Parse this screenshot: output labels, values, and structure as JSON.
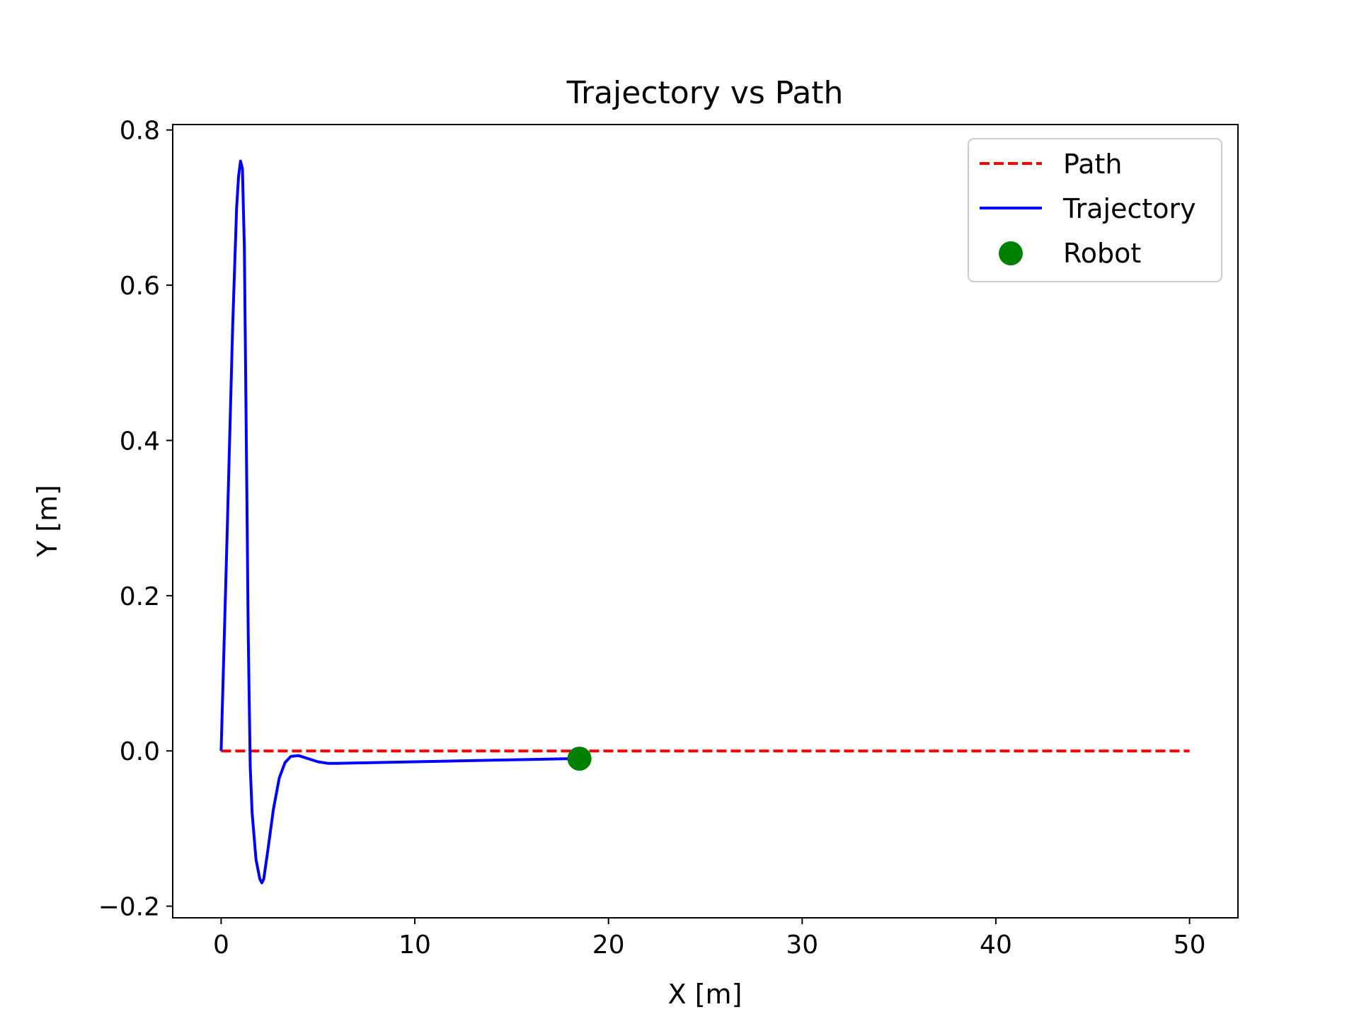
{
  "chart_data": {
    "type": "line",
    "title": "Trajectory vs Path",
    "xlabel": "X [m]",
    "ylabel": "Y [m]",
    "xlim": [
      -2.5,
      52.5
    ],
    "ylim": [
      -0.215,
      0.807
    ],
    "xticks": [
      0,
      10,
      20,
      30,
      40,
      50
    ],
    "yticks": [
      -0.2,
      0.0,
      0.2,
      0.4,
      0.6,
      0.8
    ],
    "xtick_labels": [
      "0",
      "10",
      "20",
      "30",
      "40",
      "50"
    ],
    "ytick_labels": [
      "−0.2",
      "0.0",
      "0.2",
      "0.4",
      "0.6",
      "0.8"
    ],
    "grid": false,
    "legend_position": "top-right",
    "series": [
      {
        "name": "Path",
        "style": "dashed",
        "color": "#ff0000",
        "x": [
          0,
          50
        ],
        "y": [
          0,
          0
        ]
      },
      {
        "name": "Trajectory",
        "style": "solid",
        "color": "#0000ff",
        "x": [
          0,
          0.3,
          0.6,
          0.8,
          0.9,
          1.0,
          1.1,
          1.2,
          1.3,
          1.4,
          1.5,
          1.6,
          1.8,
          2.0,
          2.1,
          2.2,
          2.4,
          2.7,
          3.0,
          3.3,
          3.6,
          4.0,
          4.5,
          5.0,
          5.5,
          6.0,
          8.0,
          10.0,
          12.0,
          14.0,
          16.0,
          18.0,
          18.5
        ],
        "y": [
          0.0,
          0.27,
          0.55,
          0.7,
          0.74,
          0.76,
          0.75,
          0.65,
          0.4,
          0.15,
          -0.02,
          -0.08,
          -0.14,
          -0.165,
          -0.17,
          -0.165,
          -0.13,
          -0.075,
          -0.035,
          -0.015,
          -0.007,
          -0.006,
          -0.01,
          -0.014,
          -0.016,
          -0.016,
          -0.015,
          -0.014,
          -0.013,
          -0.012,
          -0.011,
          -0.01,
          -0.01
        ]
      },
      {
        "name": "Robot",
        "style": "marker",
        "color": "#008000",
        "x": [
          18.5
        ],
        "y": [
          -0.01
        ]
      }
    ]
  }
}
